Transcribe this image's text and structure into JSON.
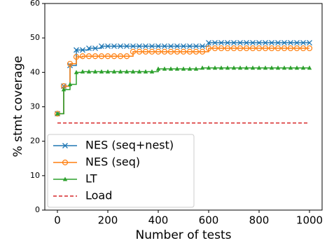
{
  "chart_data": {
    "type": "line",
    "drawstyle": "steps-post",
    "xlabel": "Number of tests",
    "ylabel": "% stmt coverage",
    "xlim": [
      -50,
      1050
    ],
    "ylim": [
      0,
      60
    ],
    "xticks": [
      0,
      200,
      400,
      600,
      800,
      1000
    ],
    "yticks": [
      0,
      10,
      20,
      30,
      40,
      50,
      60
    ],
    "legend": "lower left",
    "x": [
      0,
      25,
      50,
      75,
      100,
      125,
      150,
      175,
      200,
      225,
      250,
      275,
      300,
      325,
      350,
      375,
      400,
      425,
      450,
      475,
      500,
      525,
      550,
      575,
      600,
      625,
      650,
      675,
      700,
      725,
      750,
      775,
      800,
      825,
      850,
      875,
      900,
      925,
      950,
      975,
      1000
    ],
    "series": [
      {
        "name": "NES (seq+nest)",
        "color": "#1f77b4",
        "marker": "x",
        "linestyle": "solid",
        "values": [
          28,
          36,
          42,
          46.5,
          46.5,
          47,
          47,
          47.6,
          47.6,
          47.6,
          47.6,
          47.6,
          47.6,
          47.6,
          47.6,
          47.6,
          47.6,
          47.6,
          47.6,
          47.6,
          47.6,
          47.6,
          47.6,
          47.6,
          48.6,
          48.6,
          48.6,
          48.6,
          48.6,
          48.6,
          48.6,
          48.6,
          48.6,
          48.6,
          48.6,
          48.6,
          48.6,
          48.6,
          48.6,
          48.6,
          48.6
        ]
      },
      {
        "name": "NES (seq)",
        "color": "#ff7f0e",
        "marker": "o",
        "linestyle": "solid",
        "values": [
          28,
          36,
          42.5,
          44.5,
          44.7,
          44.7,
          44.7,
          44.7,
          44.7,
          44.7,
          44.7,
          44.7,
          46,
          46,
          46,
          46,
          46,
          46,
          46,
          46,
          46,
          46,
          46,
          46,
          47,
          47,
          47,
          47,
          47,
          47,
          47,
          47,
          47,
          47,
          47,
          47,
          47,
          47,
          47,
          47,
          47
        ]
      },
      {
        "name": "LT",
        "color": "#2ca02c",
        "marker": "^",
        "linestyle": "solid",
        "values": [
          28,
          35,
          36.5,
          40,
          40.2,
          40.2,
          40.2,
          40.2,
          40.2,
          40.2,
          40.2,
          40.2,
          40.2,
          40.2,
          40.2,
          40.2,
          41,
          41,
          41,
          41,
          41,
          41,
          41,
          41.3,
          41.3,
          41.3,
          41.3,
          41.3,
          41.3,
          41.3,
          41.3,
          41.3,
          41.3,
          41.3,
          41.3,
          41.3,
          41.3,
          41.3,
          41.3,
          41.3,
          41.3
        ]
      },
      {
        "name": "Load",
        "color": "#d62728",
        "marker": "none",
        "linestyle": "dashed",
        "x": [
          0,
          1000
        ],
        "values": [
          25.3,
          25.3
        ]
      }
    ]
  }
}
